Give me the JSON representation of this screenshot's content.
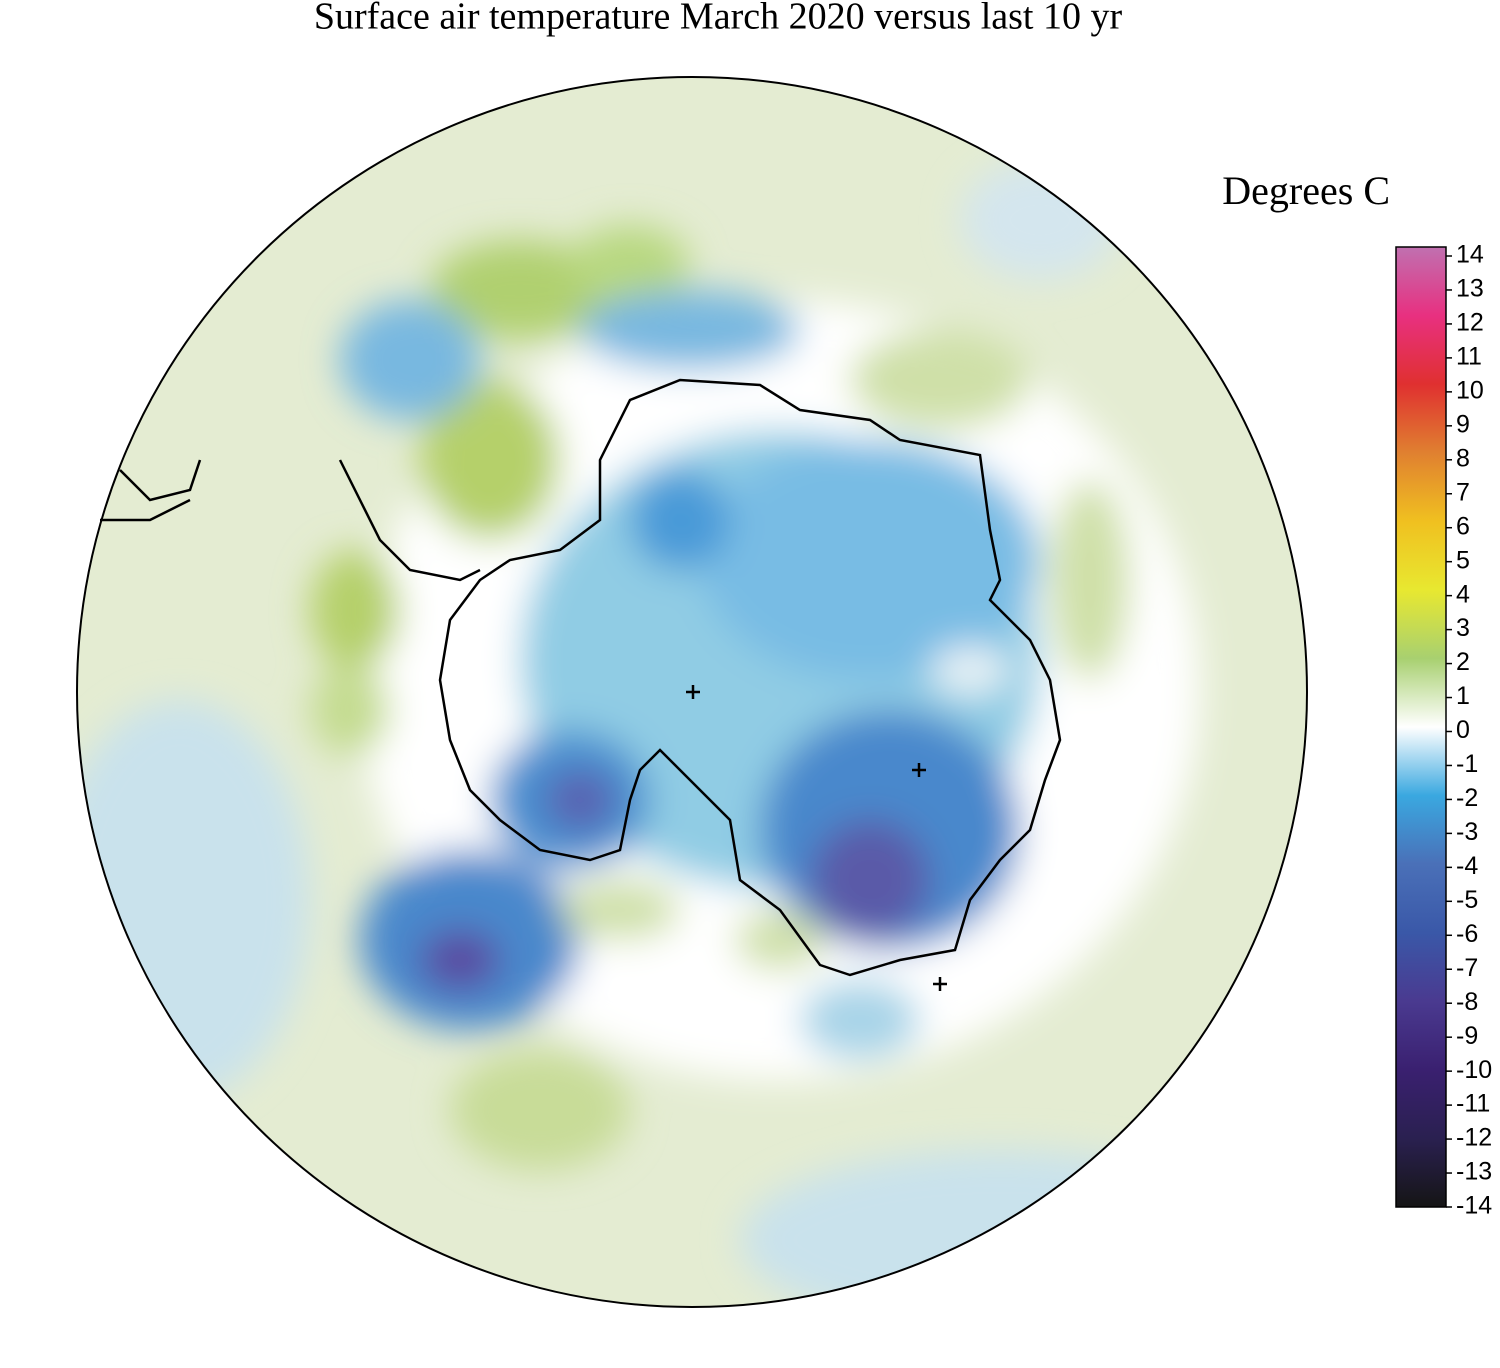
{
  "title": "Surface air temperature March 2020 versus last 10 yr",
  "colorbar": {
    "label": "Degrees C",
    "lim": [
      -14,
      14
    ],
    "ticks": [
      14,
      13,
      12,
      11,
      10,
      9,
      8,
      7,
      6,
      5,
      4,
      3,
      2,
      1,
      0,
      -1,
      -2,
      -3,
      -4,
      -5,
      -6,
      -7,
      -8,
      -9,
      -10,
      -11,
      -12,
      -13,
      -14
    ],
    "colors": [
      "#151515",
      "#2a2050",
      "#3a2070",
      "#4a3a90",
      "#3a58a8",
      "#4a70b8",
      "#3aa8e0",
      "#ffffff",
      "#a8d070",
      "#e8e830",
      "#f0c020",
      "#e08030",
      "#e03030",
      "#e83080",
      "#c070b0"
    ]
  }
}
